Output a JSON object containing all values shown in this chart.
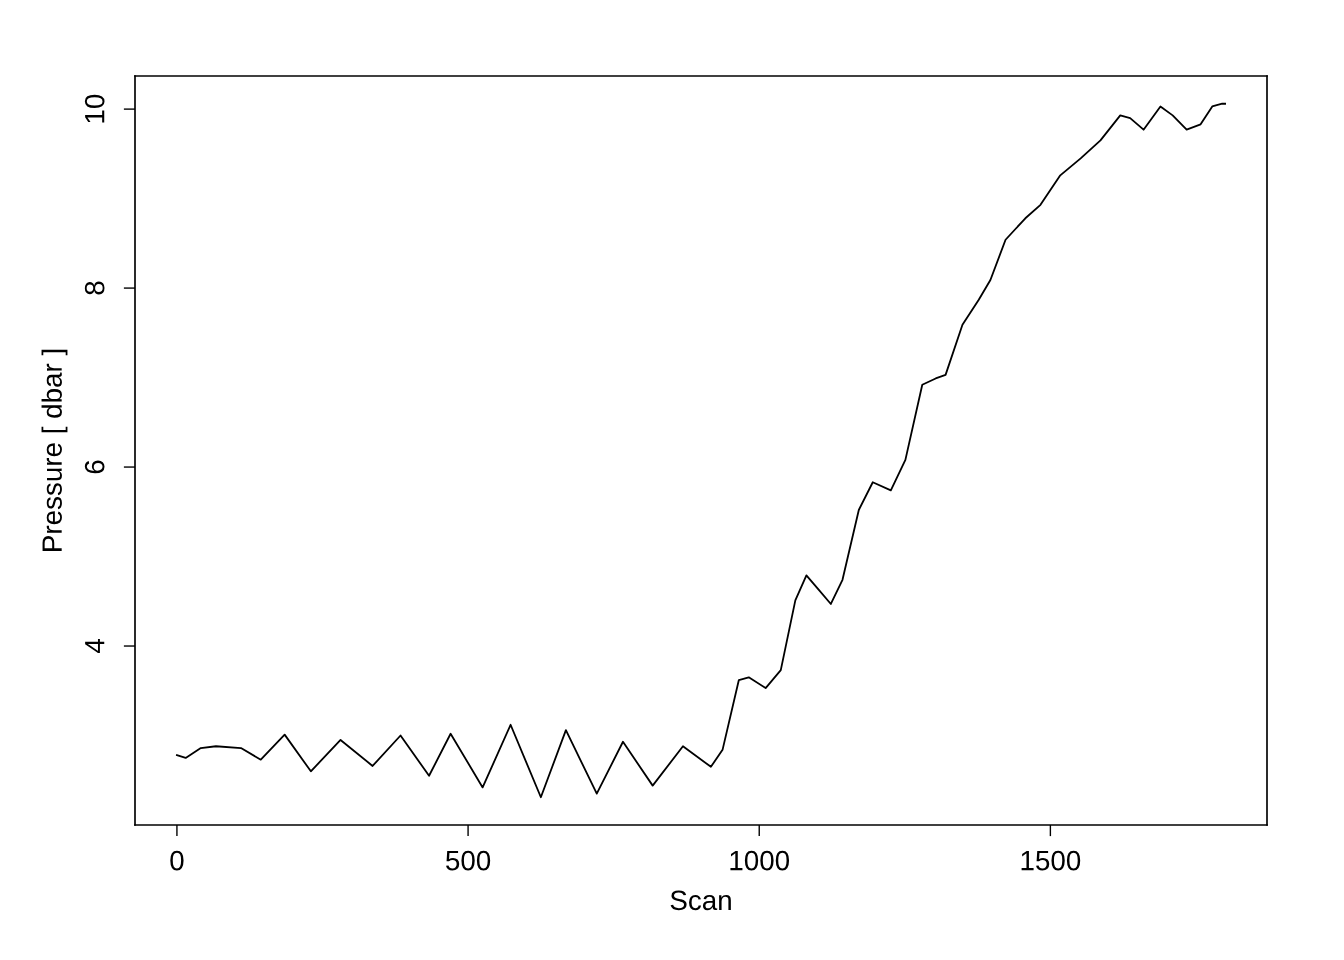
{
  "chart_data": {
    "type": "line",
    "xlabel": "Scan",
    "ylabel": "Pressure [ dbar ]",
    "color": "#000000",
    "x": [
      0,
      15,
      41,
      67,
      110,
      144,
      185,
      230,
      281,
      336,
      384,
      433,
      470,
      525,
      573,
      625,
      668,
      721,
      766,
      817,
      869,
      917,
      937,
      965,
      982,
      1011,
      1037,
      1062,
      1081,
      1102,
      1123,
      1143,
      1171,
      1195,
      1226,
      1251,
      1280,
      1303,
      1320,
      1349,
      1377,
      1397,
      1423,
      1457,
      1483,
      1517,
      1552,
      1586,
      1620,
      1637,
      1660,
      1689,
      1710,
      1734,
      1758,
      1778,
      1795,
      1800
    ],
    "values": [
      2.78,
      2.75,
      2.86,
      2.88,
      2.86,
      2.73,
      3.01,
      2.6,
      2.95,
      2.66,
      3.0,
      2.55,
      3.02,
      2.42,
      3.12,
      2.31,
      3.06,
      2.35,
      2.93,
      2.44,
      2.88,
      2.65,
      2.84,
      3.62,
      3.65,
      3.53,
      3.73,
      4.51,
      4.79,
      4.63,
      4.47,
      4.74,
      5.52,
      5.83,
      5.74,
      6.08,
      6.92,
      6.99,
      7.03,
      7.59,
      7.87,
      8.09,
      8.54,
      8.78,
      8.93,
      9.26,
      9.45,
      9.65,
      9.93,
      9.9,
      9.77,
      10.03,
      9.93,
      9.77,
      9.83,
      10.03,
      10.06,
      10.06
    ],
    "xlim": [
      -72,
      1872
    ],
    "ylim": [
      2.0,
      10.37
    ],
    "xticks": [
      0,
      500,
      1000,
      1500
    ],
    "yticks": [
      4,
      6,
      8,
      10
    ],
    "grid": false,
    "legend": false
  }
}
